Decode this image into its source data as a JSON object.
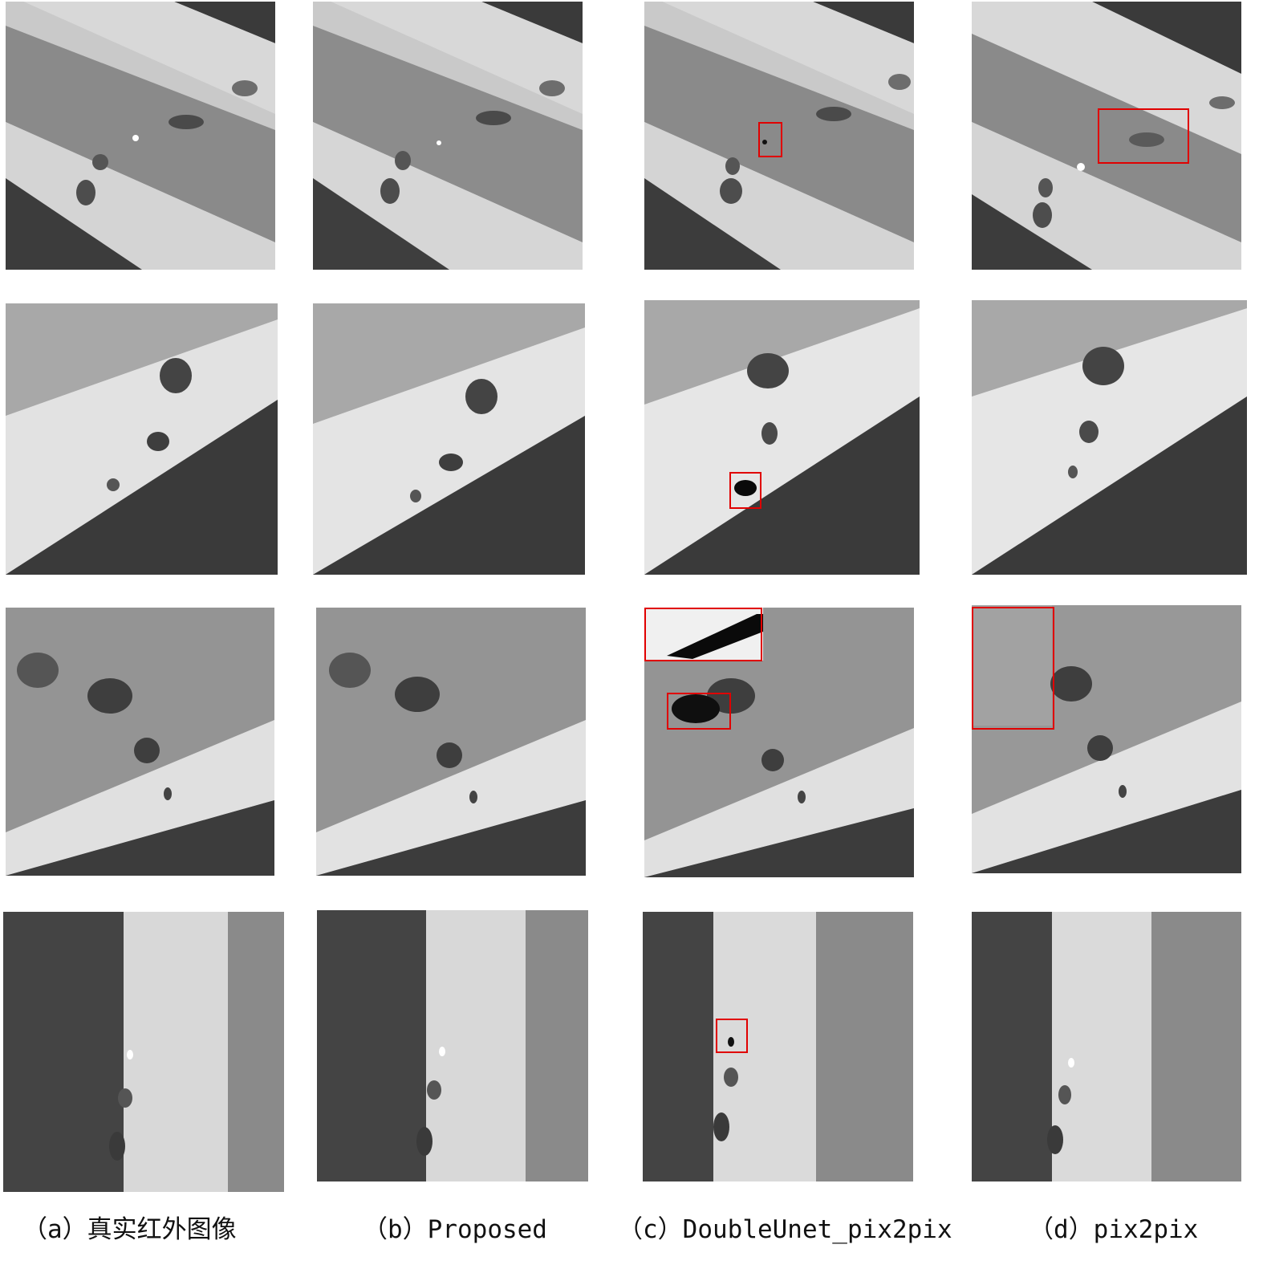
{
  "figure": {
    "captions": [
      "（a）真实红外图像",
      "（b）Proposed",
      "（c）DoubleUnet_pix2pix",
      "（d）pix2pix"
    ],
    "colors": {
      "highlight_box": "#e00000",
      "background": "#ffffff"
    },
    "rows": [
      {
        "scene": "diagonal-road-descending",
        "columns": [
          "ground-truth",
          "proposed",
          "doubleunet-pix2pix",
          "pix2pix"
        ],
        "highlights_per_column": [
          0,
          0,
          1,
          1
        ]
      },
      {
        "scene": "diagonal-road-ascending",
        "columns": [
          "ground-truth",
          "proposed",
          "doubleunet-pix2pix",
          "pix2pix"
        ],
        "highlights_per_column": [
          0,
          0,
          1,
          0
        ]
      },
      {
        "scene": "diagonal-road-ascending-trucks",
        "columns": [
          "ground-truth",
          "proposed",
          "doubleunet-pix2pix",
          "pix2pix"
        ],
        "highlights_per_column": [
          0,
          0,
          2,
          1
        ]
      },
      {
        "scene": "vertical-road",
        "columns": [
          "ground-truth",
          "proposed",
          "doubleunet-pix2pix",
          "pix2pix"
        ],
        "highlights_per_column": [
          0,
          0,
          1,
          0
        ]
      }
    ]
  }
}
